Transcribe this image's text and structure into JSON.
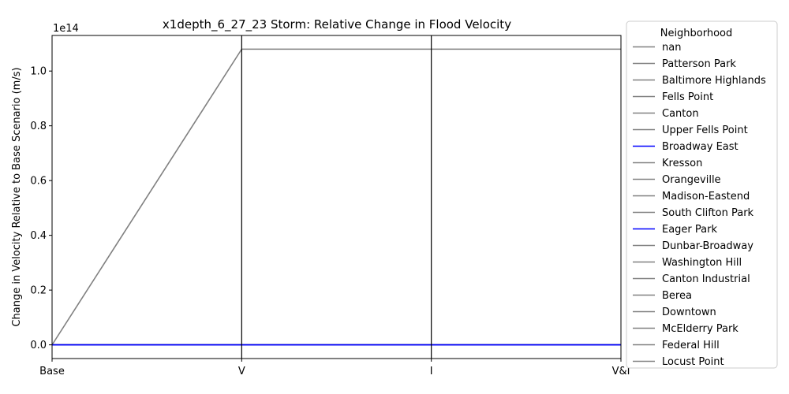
{
  "chart_data": {
    "type": "line",
    "title": "x1depth_6_27_23 Storm: Relative Change in Flood Velocity",
    "xlabel": "",
    "ylabel": "Change in Velocity Relative to Base Scenario (m/s)",
    "y_offset_label": "1e14",
    "categories": [
      "Base",
      "V",
      "I",
      "V&I"
    ],
    "y_scale_factor": 100000000000000,
    "ylim": [
      -0.05,
      1.13
    ],
    "yticks": [
      0.0,
      0.2,
      0.4,
      0.6,
      0.8,
      1.0
    ],
    "ytick_labels": [
      "0.0",
      "0.2",
      "0.4",
      "0.6",
      "0.8",
      "1.0"
    ],
    "grid": false,
    "vertical_axis_lines": true,
    "legend": {
      "title": "Neighborhood",
      "placement": "outside-right"
    },
    "series": [
      {
        "name": "nan",
        "color": "#808080",
        "values": [
          0,
          1.08,
          1.08,
          1.08
        ]
      },
      {
        "name": "Patterson Park",
        "color": "#808080",
        "values": [
          0,
          0,
          0,
          0
        ]
      },
      {
        "name": "Baltimore Highlands",
        "color": "#808080",
        "values": [
          0,
          0,
          0,
          0
        ]
      },
      {
        "name": "Fells Point",
        "color": "#808080",
        "values": [
          0,
          0,
          0,
          0
        ]
      },
      {
        "name": "Canton",
        "color": "#808080",
        "values": [
          0,
          0,
          0,
          0
        ]
      },
      {
        "name": "Upper Fells Point",
        "color": "#808080",
        "values": [
          0,
          0,
          0,
          0
        ]
      },
      {
        "name": "Broadway East",
        "color": "#0000ff",
        "values": [
          0,
          0,
          0,
          0
        ]
      },
      {
        "name": "Kresson",
        "color": "#808080",
        "values": [
          0,
          0,
          0,
          0
        ]
      },
      {
        "name": "Orangeville",
        "color": "#808080",
        "values": [
          0,
          0,
          0,
          0
        ]
      },
      {
        "name": "Madison-Eastend",
        "color": "#808080",
        "values": [
          0,
          0,
          0,
          0
        ]
      },
      {
        "name": "South Clifton Park",
        "color": "#808080",
        "values": [
          0,
          0,
          0,
          0
        ]
      },
      {
        "name": "Eager Park",
        "color": "#0000ff",
        "values": [
          0,
          0,
          0,
          0
        ]
      },
      {
        "name": "Dunbar-Broadway",
        "color": "#808080",
        "values": [
          0,
          0,
          0,
          0
        ]
      },
      {
        "name": "Washington Hill",
        "color": "#808080",
        "values": [
          0,
          0,
          0,
          0
        ]
      },
      {
        "name": "Canton Industrial",
        "color": "#808080",
        "values": [
          0,
          0,
          0,
          0
        ]
      },
      {
        "name": "Berea",
        "color": "#808080",
        "values": [
          0,
          0,
          0,
          0
        ]
      },
      {
        "name": "Downtown",
        "color": "#808080",
        "values": [
          0,
          0,
          0,
          0
        ]
      },
      {
        "name": "McElderry Park",
        "color": "#808080",
        "values": [
          0,
          0,
          0,
          0
        ]
      },
      {
        "name": "Federal Hill",
        "color": "#808080",
        "values": [
          0,
          0,
          0,
          0
        ]
      },
      {
        "name": "Locust Point",
        "color": "#808080",
        "values": [
          0,
          0,
          0,
          0
        ]
      }
    ]
  }
}
